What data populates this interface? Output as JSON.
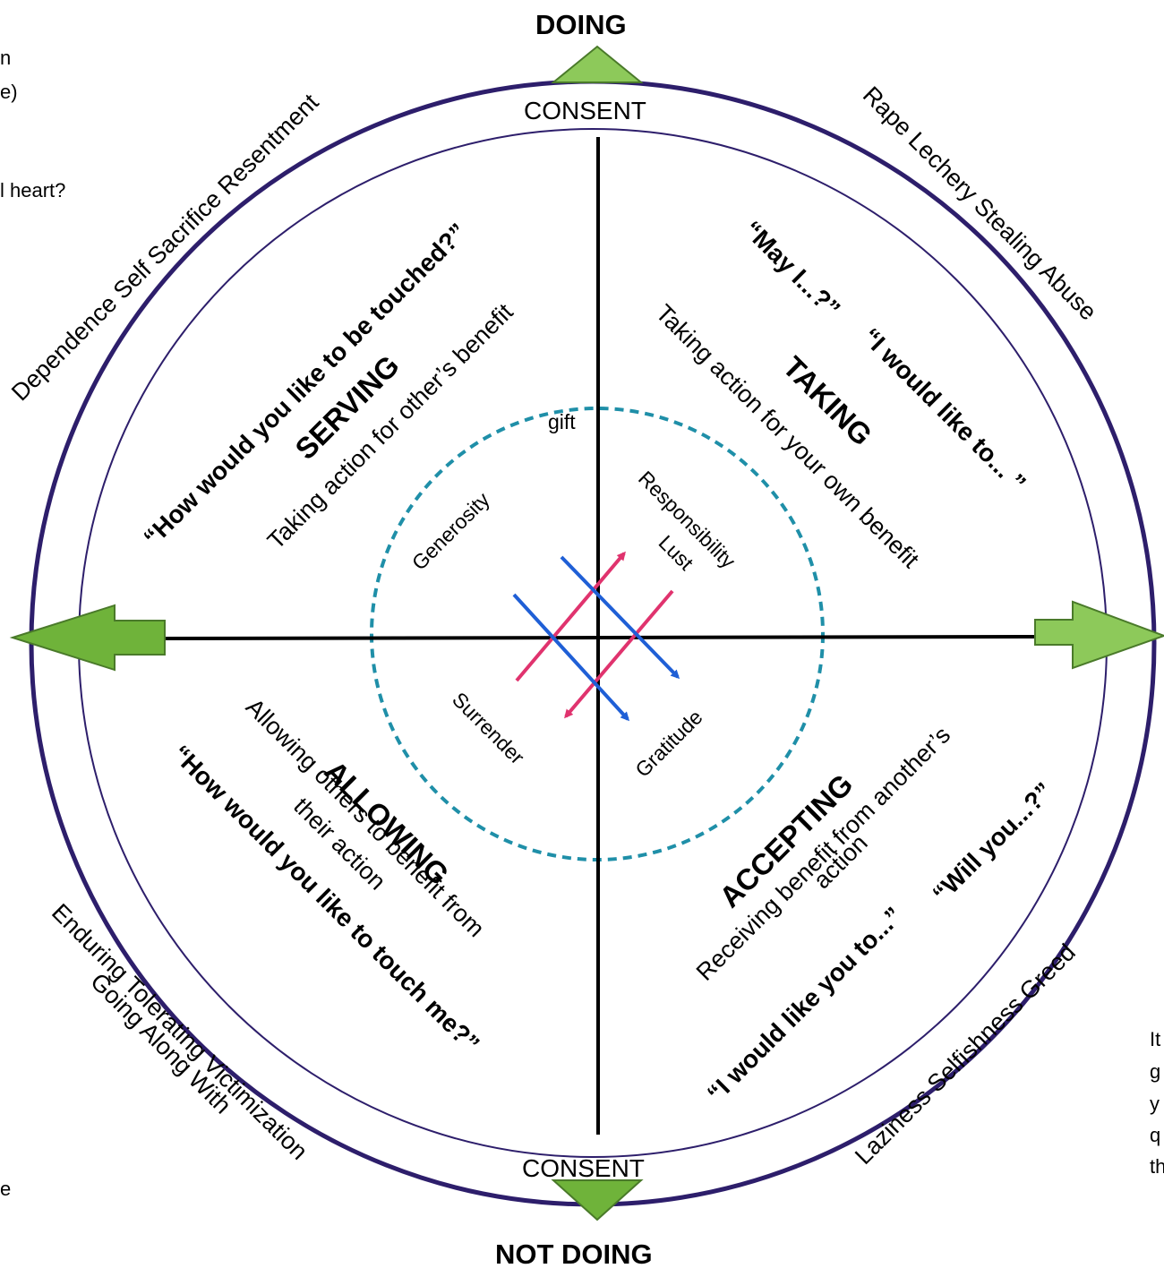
{
  "axes": {
    "top": "DOING",
    "bottom": "NOT DOING",
    "consent_top": "CONSENT",
    "consent_bottom": "CONSENT"
  },
  "inner_circle": {
    "label": "gift",
    "top_left": "Generosity",
    "top_right_1": "Responsibility",
    "top_right_2": "Lust",
    "bottom_left": "Surrender",
    "bottom_right": "Gratitude"
  },
  "quadrants": {
    "serving": {
      "title": "SERVING",
      "desc": "Taking action for other’s benefit",
      "quote": "“How would you like to be touched?”",
      "shadow_1": "Dependence Self Sacrifice Resentment"
    },
    "taking": {
      "title": "TAKING",
      "desc": "Taking action for your own benefit",
      "quote_1": "“May I...?”",
      "quote_2": "“I would like to... ”",
      "shadow": "Rape Lechery Stealing Abuse"
    },
    "allowing": {
      "title": "ALLOWING",
      "desc_1": "Allowing others to benefit from",
      "desc_2": "their action",
      "quote": "“How would you like to touch me?”",
      "shadow_1": "Enduring Tolerating Victimization",
      "shadow_2": "Going Along With"
    },
    "accepting": {
      "title": "ACCEPTING",
      "desc_1": "Receiving benefit from another’s",
      "desc_2": "action",
      "quote_1": "“I would like you to...”",
      "quote_2": "“Will you...?”",
      "shadow": "Laziness Selfishness Greed"
    }
  },
  "margin_fragments": {
    "left_1": "n",
    "left_2": "e)",
    "left_3": "l heart?",
    "left_4": "e",
    "right_1": "It",
    "right_2": "g",
    "right_3": "y",
    "right_4": "q",
    "right_5": "th"
  },
  "colors": {
    "ring": "#2d1e6b",
    "axis": "#000000",
    "dashed": "#1f8fa8",
    "arrow_green": "#8dc95a",
    "arrow_green_stroke": "#4a7a2a",
    "pink": "#e0336e",
    "blue": "#1f5fd6"
  }
}
